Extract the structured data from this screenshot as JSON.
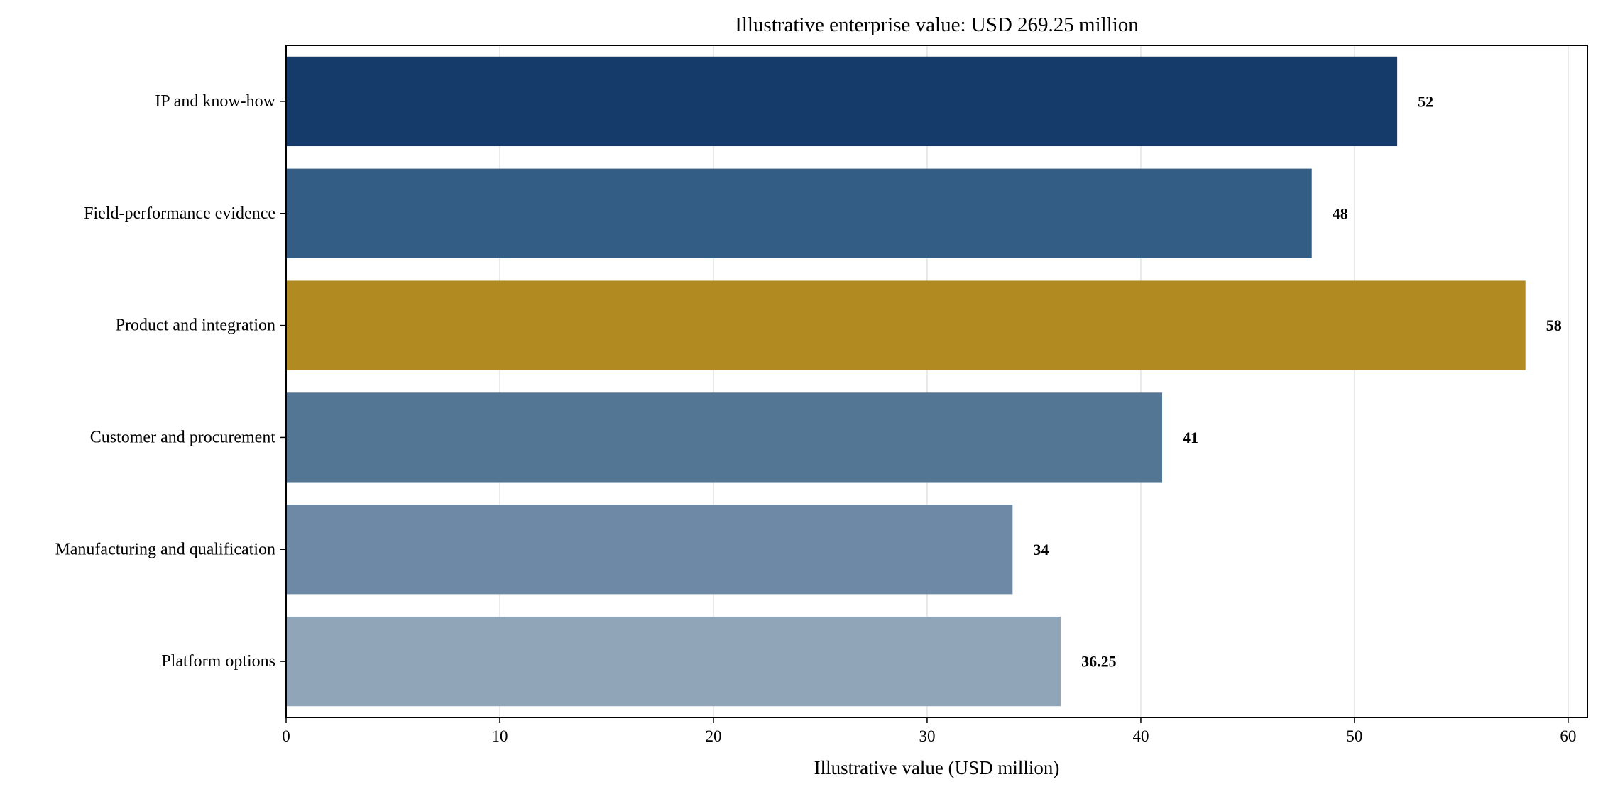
{
  "chart_data": {
    "type": "bar",
    "orientation": "horizontal",
    "title": "Illustrative enterprise value: USD 269.25 million",
    "xlabel": "Illustrative value (USD million)",
    "ylabel": "",
    "xlim": [
      0,
      60.9
    ],
    "xticks": [
      0,
      10,
      20,
      30,
      40,
      50,
      60
    ],
    "xtick_labels": [
      "0",
      "10",
      "20",
      "30",
      "40",
      "50",
      "60"
    ],
    "grid": "vertical",
    "categories": [
      "IP and know-how",
      "Field-performance evidence",
      "Product and integration",
      "Customer and procurement",
      "Manufacturing and qualification",
      "Platform options"
    ],
    "values": [
      52,
      48,
      58,
      41,
      34,
      36.25
    ],
    "value_labels": [
      "52",
      "48",
      "58",
      "41",
      "34",
      "36.25"
    ],
    "colors": [
      "#143b6a",
      "#335d85",
      "#b28a22",
      "#547695",
      "#6d89a5",
      "#91a5b9"
    ]
  }
}
